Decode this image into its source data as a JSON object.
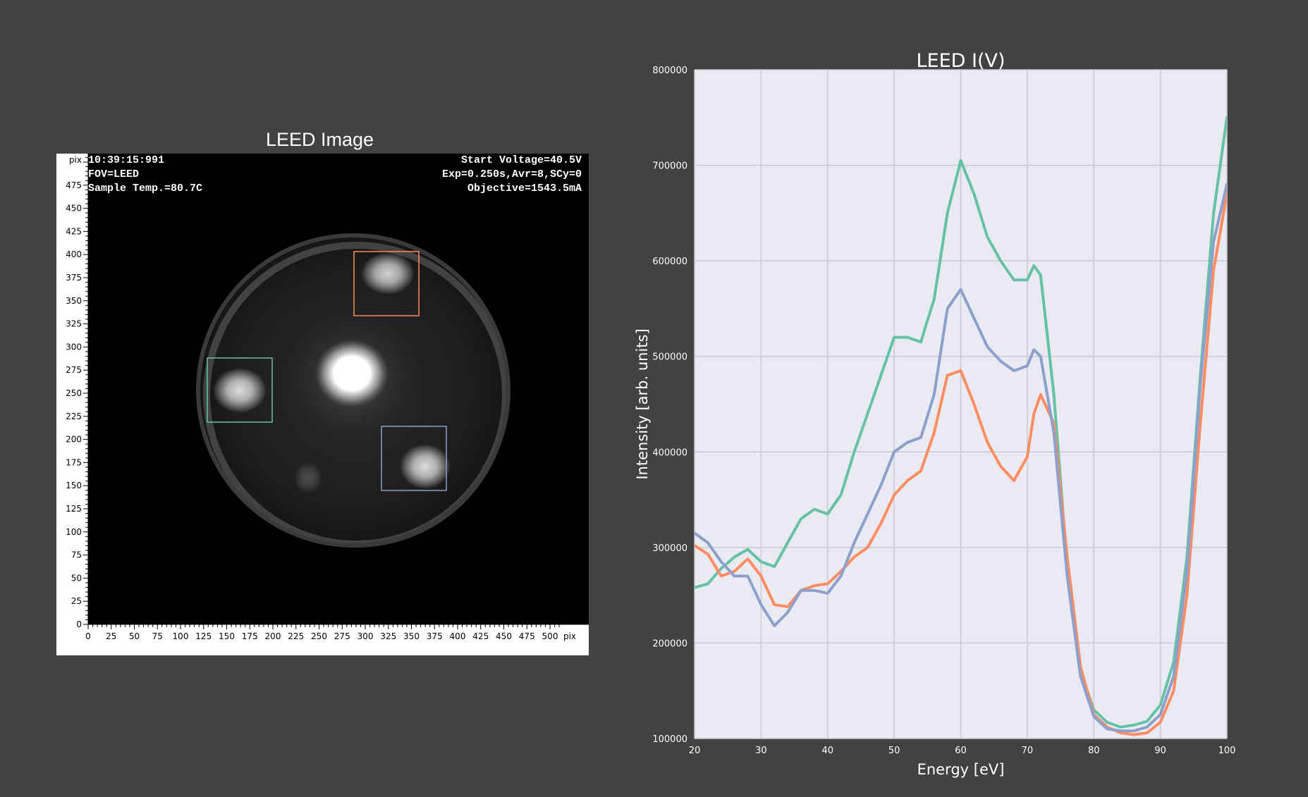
{
  "left_panel": {
    "title": "LEED Image",
    "overlay_left": [
      "10:39:15:991",
      "FOV=LEED",
      "Sample Temp.=80.7C"
    ],
    "overlay_right": [
      "Start Voltage=40.5V",
      "Exp=0.250s,Avr=8,SCy=0",
      "Objective=1543.5mA"
    ],
    "x_ticks": [
      "0",
      "25",
      "50",
      "75",
      "100",
      "125",
      "150",
      "175",
      "200",
      "225",
      "250",
      "275",
      "300",
      "325",
      "350",
      "375",
      "400",
      "425",
      "450",
      "475",
      "500"
    ],
    "x_unit": "pix",
    "y_ticks": [
      "0",
      "25",
      "50",
      "75",
      "100",
      "125",
      "150",
      "175",
      "200",
      "225",
      "250",
      "275",
      "300",
      "325",
      "350",
      "375",
      "400",
      "425",
      "450",
      "475"
    ],
    "y_unit": "pix",
    "roi_colors": {
      "green": "#66c2a5",
      "orange": "#fc8d62",
      "blue": "#8da0cb"
    }
  },
  "chart_data": {
    "type": "line",
    "title": "LEED I(V)",
    "xlabel": "Energy [eV]",
    "ylabel": "Intensity [arb. units]",
    "xlim": [
      20,
      100
    ],
    "ylim": [
      100000,
      800000
    ],
    "x_ticks": [
      20,
      30,
      40,
      50,
      60,
      70,
      80,
      90,
      100
    ],
    "y_ticks": [
      100000,
      200000,
      300000,
      400000,
      500000,
      600000,
      700000,
      800000
    ],
    "grid": true,
    "background": "#eaeaf2",
    "x": [
      20,
      22,
      24,
      26,
      28,
      30,
      32,
      34,
      36,
      38,
      40,
      42,
      44,
      46,
      48,
      50,
      52,
      54,
      56,
      58,
      60,
      62,
      64,
      66,
      68,
      70,
      71,
      72,
      74,
      76,
      78,
      80,
      82,
      84,
      86,
      88,
      90,
      92,
      94,
      96,
      98,
      100
    ],
    "series": [
      {
        "color": "#66c2a5",
        "values": [
          258000,
          262000,
          278000,
          290000,
          298000,
          285000,
          280000,
          305000,
          330000,
          340000,
          335000,
          355000,
          400000,
          440000,
          480000,
          520000,
          520000,
          515000,
          560000,
          650000,
          705000,
          670000,
          625000,
          600000,
          580000,
          580000,
          595000,
          585000,
          460000,
          280000,
          170000,
          130000,
          117000,
          112000,
          114000,
          118000,
          135000,
          180000,
          290000,
          480000,
          650000,
          750000
        ]
      },
      {
        "color": "#fc8d62",
        "values": [
          302000,
          293000,
          270000,
          275000,
          288000,
          270000,
          240000,
          238000,
          255000,
          260000,
          262000,
          275000,
          290000,
          300000,
          325000,
          355000,
          370000,
          380000,
          420000,
          480000,
          485000,
          450000,
          410000,
          385000,
          370000,
          395000,
          440000,
          460000,
          430000,
          290000,
          175000,
          125000,
          112000,
          106000,
          104000,
          106000,
          117000,
          150000,
          250000,
          430000,
          590000,
          670000
        ]
      },
      {
        "color": "#8da0cb",
        "values": [
          315000,
          305000,
          285000,
          270000,
          270000,
          240000,
          218000,
          232000,
          255000,
          255000,
          252000,
          270000,
          305000,
          335000,
          365000,
          400000,
          410000,
          415000,
          460000,
          550000,
          570000,
          540000,
          510000,
          495000,
          485000,
          490000,
          507000,
          500000,
          420000,
          270000,
          165000,
          123000,
          110000,
          108000,
          108000,
          112000,
          125000,
          165000,
          275000,
          470000,
          620000,
          680000
        ]
      }
    ]
  }
}
